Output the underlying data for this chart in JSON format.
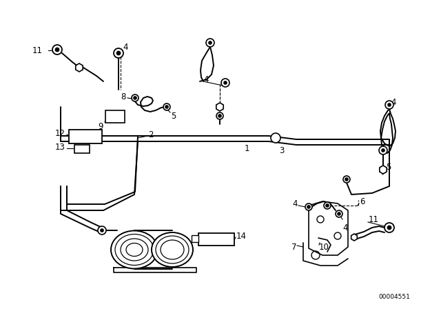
{
  "background_color": "#ffffff",
  "line_color": "#000000",
  "lw_pipe": 1.4,
  "lw_thin": 0.8,
  "lw_thick": 1.8,
  "part_number_text": "00004551",
  "figsize": [
    6.4,
    4.48
  ],
  "dpi": 100,
  "label_fontsize": 8.5
}
